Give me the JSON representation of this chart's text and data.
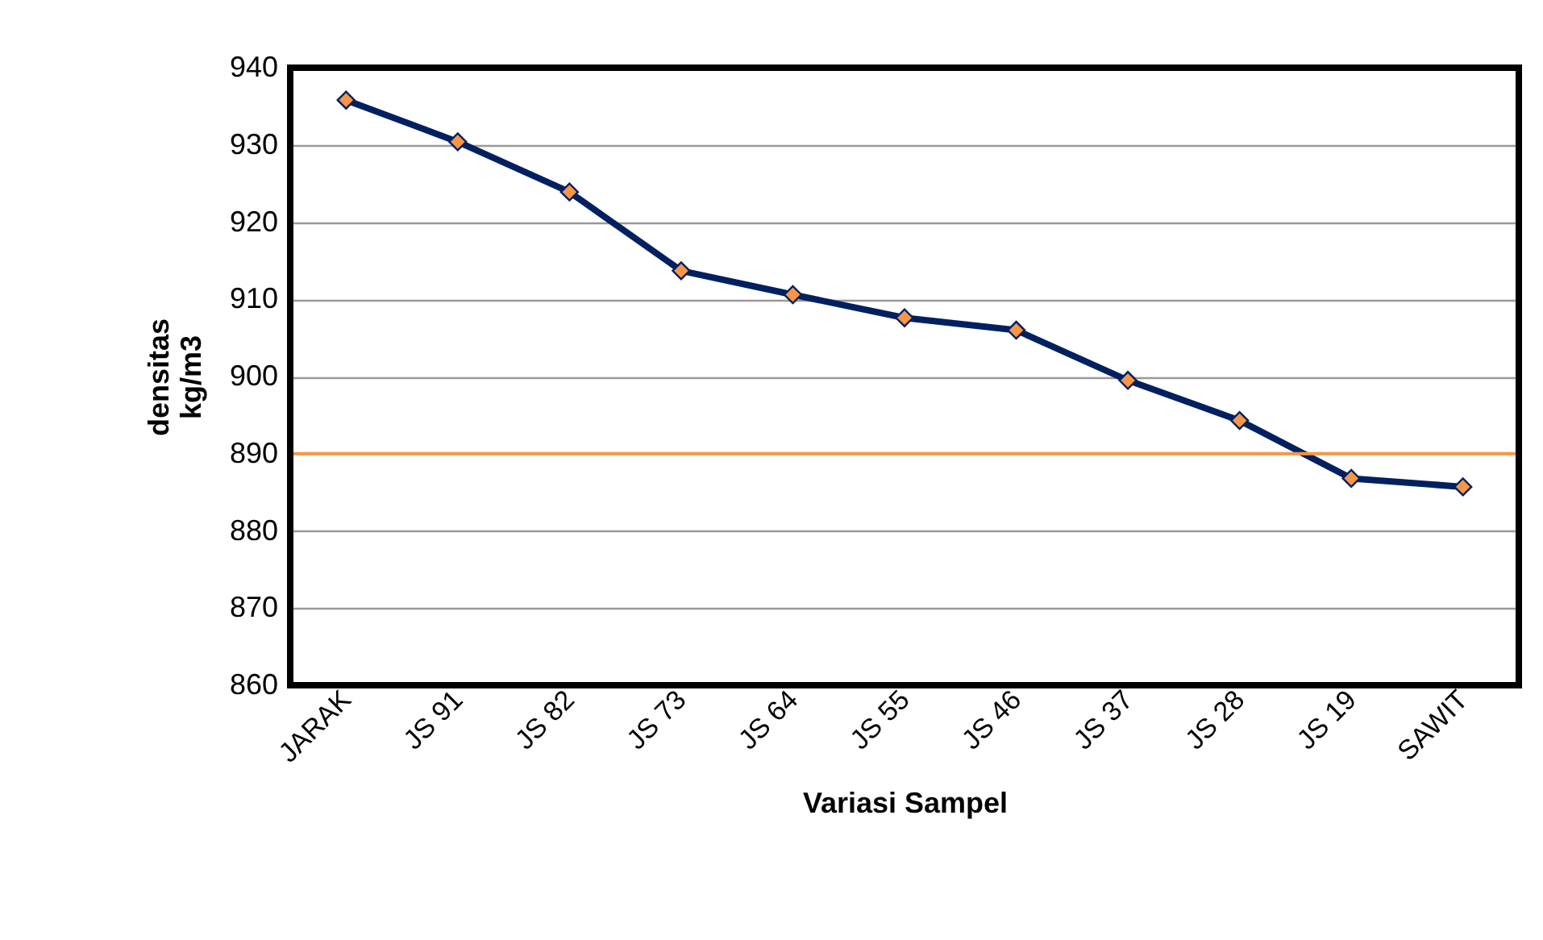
{
  "chart_data": {
    "type": "line",
    "xlabel": "Variasi Sampel",
    "ylabel": "densitas\nkg/m3",
    "categories": [
      "JARAK",
      "JS 91",
      "JS 82",
      "JS 73",
      "JS 64",
      "JS 55",
      "JS 46",
      "JS 37",
      "JS 28",
      "JS 19",
      "SAWIT"
    ],
    "series": [
      {
        "color": "#002060",
        "values": [
          935.8,
          930.4,
          923.9,
          913.7,
          910.6,
          907.6,
          906.0,
          899.5,
          894.3,
          886.8,
          885.7
        ]
      }
    ],
    "marker": "diamond",
    "line_style": "solid",
    "ylim": [
      860,
      940
    ],
    "yticks": [
      860,
      870,
      880,
      890,
      900,
      910,
      920,
      930,
      940
    ],
    "grid": "y",
    "ref_lines": [
      {
        "axis": "y",
        "value": 890,
        "color": "#f79646"
      }
    ]
  }
}
